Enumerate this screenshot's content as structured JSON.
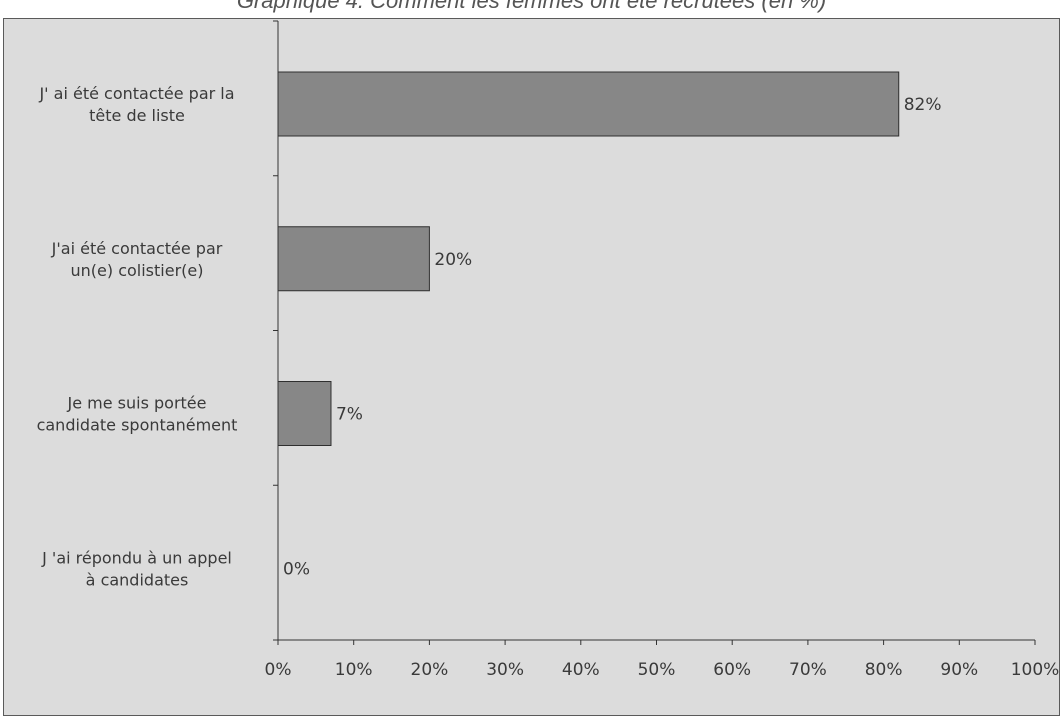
{
  "title": "Graphique 4. Comment les femmes ont été recrutées (en %)",
  "colors": {
    "panel_bg": "#dcdcdc",
    "bar_fill": "#878787",
    "bar_stroke": "#2f2f2f",
    "axis": "#333333",
    "text": "#3a3a3a"
  },
  "chart_data": {
    "type": "bar",
    "orientation": "horizontal",
    "title": "Graphique 4. Comment les femmes ont été recrutées (en %)",
    "categories": [
      [
        "J' ai été contactée par la",
        "tête de liste"
      ],
      [
        "J'ai été contactée par",
        "un(e) colistier(e)"
      ],
      [
        "Je me suis portée",
        "candidate spontanément"
      ],
      [
        "J 'ai répondu à un appel",
        "à candidates"
      ]
    ],
    "values": [
      82,
      20,
      7,
      0
    ],
    "data_labels": [
      "82%",
      "20%",
      "7%",
      "0%"
    ],
    "xlim": [
      0,
      100
    ],
    "xticks": [
      "0%",
      "10%",
      "20%",
      "30%",
      "40%",
      "50%",
      "60%",
      "70%",
      "80%",
      "90%",
      "100%"
    ],
    "xlabel": "",
    "ylabel": "",
    "grid": false,
    "legend": "none"
  }
}
